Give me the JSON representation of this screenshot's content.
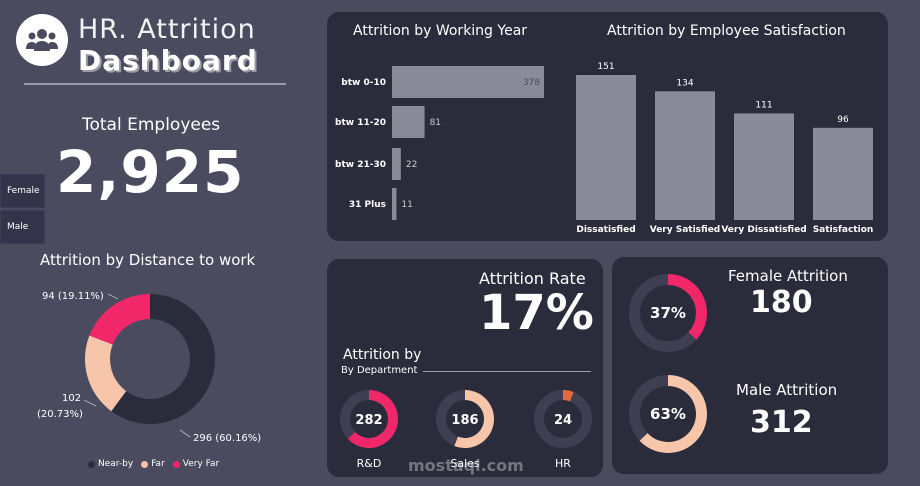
{
  "header": {
    "title_line1": "HR. Attrition",
    "title_line2": "Dashboard",
    "logo_icon": "people-group-icon"
  },
  "total_employees": {
    "label": "Total Employees",
    "value": "2,925"
  },
  "gender_slicer": {
    "items": [
      "Female",
      "Male"
    ]
  },
  "distance_chart": {
    "title": "Attrition by Distance to work",
    "legend": [
      "Near-by",
      "Far",
      "Very Far"
    ]
  },
  "attrition_rate": {
    "label": "Attrition Rate",
    "value": "17%"
  },
  "department": {
    "title": "Attrition by",
    "subtitle": "By Department",
    "items": [
      {
        "name": "R&D",
        "value": "282"
      },
      {
        "name": "Sales",
        "value": "186"
      },
      {
        "name": "HR",
        "value": "24"
      }
    ]
  },
  "gender_attrition": {
    "female_label": "Female Attrition",
    "female_value": "180",
    "female_pct": "37%",
    "male_label": "Male Attrition",
    "male_value": "312",
    "male_pct": "63%"
  },
  "watermark": {
    "text": "mostaql.com"
  },
  "colors": {
    "background": "#4a4b5f",
    "panel": "#2b2c3b",
    "bar": "#8a8a98",
    "near_by": "#2b2c3b",
    "far": "#f7c5aa",
    "very_far": "#f0286a",
    "hr_orange": "#e46a3c"
  },
  "chart_data": [
    {
      "type": "bar",
      "orientation": "horizontal",
      "title": "Attrition by Working Year",
      "categories": [
        "btw 0-10",
        "btw 11-20",
        "btw 21-30",
        "31 Plus"
      ],
      "values": [
        378,
        81,
        22,
        11
      ]
    },
    {
      "type": "bar",
      "orientation": "vertical",
      "title": "Attrition by Employee Satisfaction",
      "categories": [
        "Dissatisfied",
        "Very Satisfied",
        "Very Dissatisfied",
        "Satisfaction"
      ],
      "values": [
        151,
        134,
        111,
        96
      ]
    },
    {
      "type": "pie",
      "style": "donut",
      "title": "Attrition by Distance to work",
      "categories": [
        "Near-by",
        "Far",
        "Very Far"
      ],
      "values": [
        296,
        102,
        94
      ],
      "percent": [
        "60.16%",
        "20.73%",
        "19.11%"
      ],
      "labels": [
        "296 (60.16%)",
        "102",
        "(20.73%)",
        "94 (19.11%)"
      ]
    },
    {
      "type": "pie",
      "style": "donut",
      "title": "Attrition by Department",
      "categories": [
        "R&D",
        "Sales",
        "HR"
      ],
      "values": [
        282,
        186,
        24
      ],
      "fractions": [
        0.63,
        0.56,
        0.06
      ]
    },
    {
      "type": "pie",
      "style": "donut",
      "title": "Female / Male Attrition",
      "categories": [
        "Female",
        "Male"
      ],
      "values": [
        37,
        63
      ]
    }
  ]
}
